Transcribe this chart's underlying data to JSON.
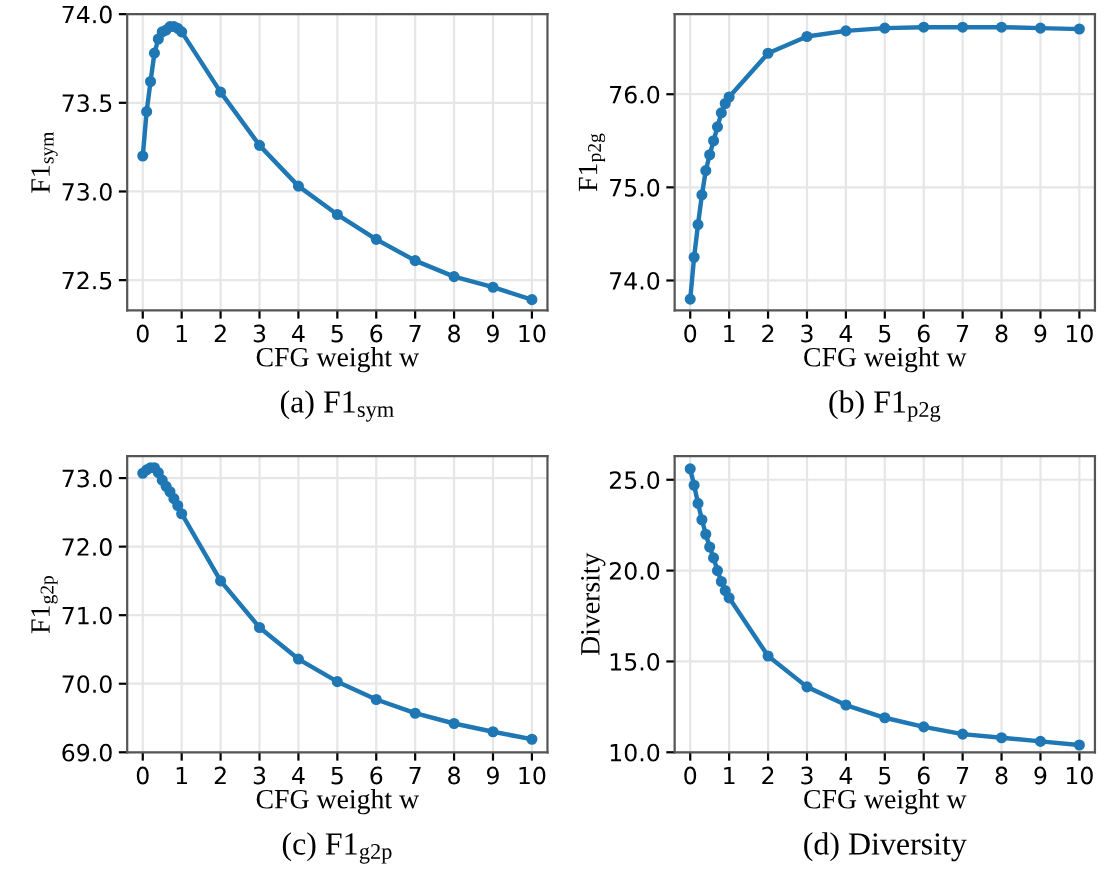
{
  "chart_data": [
    {
      "type": "line",
      "title": "(a) F1$_{sym}$",
      "xlabel": "CFG weight w",
      "ylabel": "F1$_{sym}$",
      "x": [
        0,
        0.1,
        0.2,
        0.3,
        0.4,
        0.5,
        0.6,
        0.7,
        0.8,
        0.9,
        1,
        2,
        3,
        4,
        5,
        6,
        7,
        8,
        9,
        10
      ],
      "series": [
        {
          "color": "#1f77b4",
          "values": [
            73.2,
            73.45,
            73.62,
            73.78,
            73.86,
            73.9,
            73.91,
            73.93,
            73.93,
            73.92,
            73.9,
            73.56,
            73.26,
            73.03,
            72.87,
            72.73,
            72.61,
            72.52,
            72.46,
            72.39
          ]
        }
      ],
      "xlim": [
        -0.4,
        10.4
      ],
      "xticks": [
        0,
        1,
        2,
        3,
        4,
        5,
        6,
        7,
        8,
        9,
        10
      ],
      "ylim": [
        72.33,
        74.0
      ],
      "yticks": [
        {
          "value": 72.5,
          "label": "72.5"
        },
        {
          "value": 73.0,
          "label": "73.0"
        },
        {
          "value": 73.5,
          "label": "73.5"
        },
        {
          "value": 74.0,
          "label": "74.0"
        }
      ],
      "grid": true,
      "marker": "circle",
      "line_style": "solid"
    },
    {
      "type": "line",
      "title": "(b) F1$_{p2g}$",
      "xlabel": "CFG weight w",
      "ylabel": "F1$_{p2g}$",
      "x": [
        0,
        0.1,
        0.2,
        0.3,
        0.4,
        0.5,
        0.6,
        0.7,
        0.8,
        0.9,
        1,
        2,
        3,
        4,
        5,
        6,
        7,
        8,
        9,
        10
      ],
      "series": [
        {
          "color": "#1f77b4",
          "values": [
            73.8,
            74.25,
            74.6,
            74.92,
            75.18,
            75.35,
            75.5,
            75.65,
            75.8,
            75.9,
            75.97,
            76.44,
            76.62,
            76.68,
            76.71,
            76.72,
            76.72,
            76.72,
            76.71,
            76.7
          ]
        }
      ],
      "xlim": [
        -0.4,
        10.4
      ],
      "xticks": [
        0,
        1,
        2,
        3,
        4,
        5,
        6,
        7,
        8,
        9,
        10
      ],
      "ylim": [
        73.68,
        76.86
      ],
      "yticks": [
        {
          "value": 74.0,
          "label": "74.0"
        },
        {
          "value": 75.0,
          "label": "75.0"
        },
        {
          "value": 76.0,
          "label": "76.0"
        }
      ],
      "grid": true,
      "marker": "circle",
      "line_style": "solid"
    },
    {
      "type": "line",
      "title": "(c) F1$_{g2p}$",
      "xlabel": "CFG weight w",
      "ylabel": "F1$_{g2p}$",
      "x": [
        0,
        0.1,
        0.2,
        0.3,
        0.4,
        0.5,
        0.6,
        0.7,
        0.8,
        0.9,
        1,
        2,
        3,
        4,
        5,
        6,
        7,
        8,
        9,
        10
      ],
      "series": [
        {
          "color": "#1f77b4",
          "values": [
            73.07,
            73.12,
            73.15,
            73.15,
            73.08,
            72.97,
            72.88,
            72.8,
            72.7,
            72.6,
            72.48,
            71.5,
            70.82,
            70.36,
            70.03,
            69.77,
            69.57,
            69.42,
            69.3,
            69.19
          ]
        }
      ],
      "xlim": [
        -0.4,
        10.4
      ],
      "xticks": [
        0,
        1,
        2,
        3,
        4,
        5,
        6,
        7,
        8,
        9,
        10
      ],
      "ylim": [
        69.0,
        73.32
      ],
      "yticks": [
        {
          "value": 69.0,
          "label": "69.0"
        },
        {
          "value": 70.0,
          "label": "70.0"
        },
        {
          "value": 71.0,
          "label": "71.0"
        },
        {
          "value": 72.0,
          "label": "72.0"
        },
        {
          "value": 73.0,
          "label": "73.0"
        }
      ],
      "grid": true,
      "marker": "circle",
      "line_style": "solid"
    },
    {
      "type": "line",
      "title": "(d) Diversity",
      "xlabel": "CFG weight w",
      "ylabel": "Diversity",
      "x": [
        0,
        0.1,
        0.2,
        0.3,
        0.4,
        0.5,
        0.6,
        0.7,
        0.8,
        0.9,
        1,
        2,
        3,
        4,
        5,
        6,
        7,
        8,
        9,
        10
      ],
      "series": [
        {
          "color": "#1f77b4",
          "values": [
            25.6,
            24.7,
            23.7,
            22.8,
            22.0,
            21.3,
            20.7,
            20.0,
            19.4,
            18.9,
            18.5,
            15.3,
            13.6,
            12.6,
            11.9,
            11.4,
            11.0,
            10.8,
            10.6,
            10.4
          ]
        }
      ],
      "xlim": [
        -0.4,
        10.4
      ],
      "xticks": [
        0,
        1,
        2,
        3,
        4,
        5,
        6,
        7,
        8,
        9,
        10
      ],
      "ylim": [
        10.0,
        26.3
      ],
      "yticks": [
        {
          "value": 10.0,
          "label": "10.0"
        },
        {
          "value": 15.0,
          "label": "15.0"
        },
        {
          "value": 20.0,
          "label": "20.0"
        },
        {
          "value": 25.0,
          "label": "25.0"
        }
      ],
      "grid": true,
      "marker": "circle",
      "line_style": "solid"
    }
  ]
}
